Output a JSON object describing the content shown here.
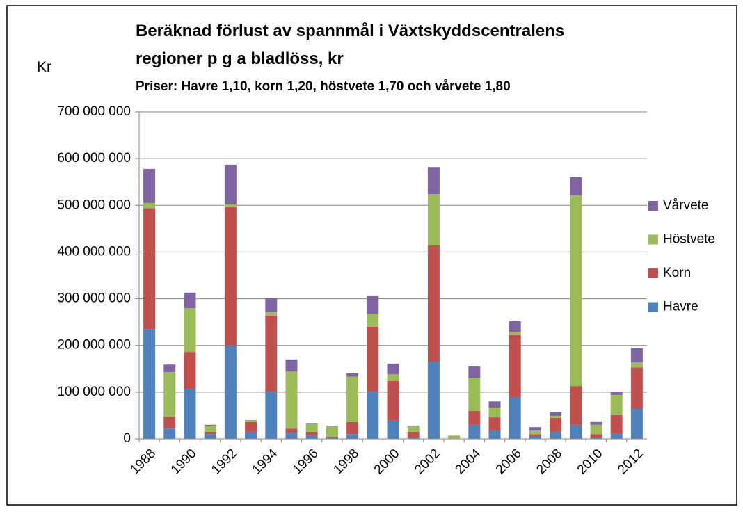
{
  "chart_data": {
    "type": "stacked_bar",
    "title": "Beräknad förlust av spannmål i Växtskyddscentralens regioner p g a bladlöss, kr",
    "subtitle": "Priser: Havre 1,10, korn 1,20, höstvete 1,70 och vårvete 1,80",
    "ylabel": "Kr",
    "categories": [
      "1988",
      null,
      "1990",
      null,
      "1992",
      null,
      "1994",
      null,
      "1996",
      null,
      "1998",
      null,
      "2000",
      null,
      "2002",
      null,
      "2004",
      null,
      "2006",
      null,
      "2008",
      null,
      "2010",
      null,
      "2012"
    ],
    "series": [
      {
        "name": "Havre",
        "color": "#4f81bd",
        "values": [
          235000000,
          22000000,
          107000000,
          10000000,
          200000000,
          15000000,
          101000000,
          13000000,
          7000000,
          3000000,
          10000000,
          101000000,
          39000000,
          3000000,
          165000000,
          1000000,
          30000000,
          18000000,
          88000000,
          6000000,
          15000000,
          30000000,
          3000000,
          12000000,
          64000000
        ]
      },
      {
        "name": "Korn",
        "color": "#c0504d",
        "values": [
          259000000,
          26000000,
          79000000,
          5000000,
          296000000,
          21000000,
          163000000,
          9000000,
          8000000,
          1000000,
          26000000,
          139000000,
          85000000,
          12000000,
          249000000,
          0,
          30000000,
          28000000,
          134000000,
          4000000,
          30000000,
          83000000,
          7000000,
          39000000,
          89000000
        ]
      },
      {
        "name": "Höstvete",
        "color": "#9bbb59",
        "values": [
          11000000,
          95000000,
          94000000,
          13000000,
          6000000,
          3000000,
          7000000,
          122000000,
          18000000,
          23000000,
          97000000,
          27000000,
          14000000,
          12000000,
          110000000,
          6000000,
          71000000,
          21000000,
          7000000,
          8000000,
          4000000,
          408000000,
          20000000,
          43000000,
          11000000
        ]
      },
      {
        "name": "Vårvete",
        "color": "#8064a2",
        "values": [
          73000000,
          16000000,
          33000000,
          2000000,
          85000000,
          1000000,
          30000000,
          26000000,
          1000000,
          1000000,
          7000000,
          40000000,
          23000000,
          1000000,
          58000000,
          0,
          24000000,
          13000000,
          23000000,
          7000000,
          9000000,
          39000000,
          6000000,
          6000000,
          30000000
        ]
      }
    ],
    "ylim": [
      0,
      700000000
    ],
    "yticks": [
      0,
      {
        "value": 100000000,
        "label": "100 000 000"
      },
      {
        "value": 200000000,
        "label": "200 000 000"
      },
      {
        "value": 300000000,
        "label": "300 000 000"
      },
      {
        "value": 400000000,
        "label": "400 000 000"
      },
      {
        "value": 500000000,
        "label": "500 000 000"
      },
      {
        "value": 600000000,
        "label": "600 000 000"
      },
      {
        "value": 700000000,
        "label": "700 000 000"
      }
    ],
    "grid": true,
    "legend": "right"
  }
}
